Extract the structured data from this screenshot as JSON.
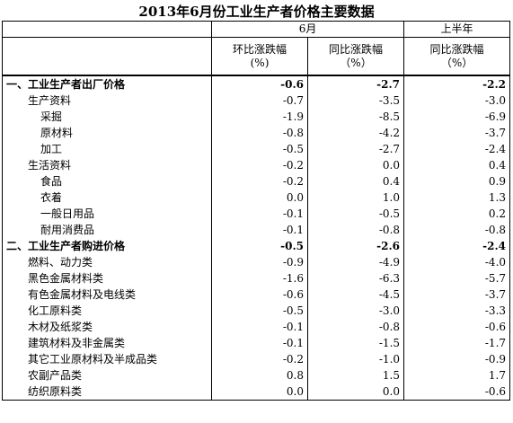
{
  "title": "2013年6月份工业生产者价格主要数据",
  "header": {
    "month": "6月",
    "half": "上半年",
    "cols": [
      [
        "环比涨跌幅",
        "(%)"
      ],
      [
        "同比涨跌幅",
        "（%）"
      ],
      [
        "同比涨跌幅",
        "（%）"
      ]
    ]
  },
  "table": {
    "rows": [
      [
        "一、工业生产者出厂价格",
        "-0.6",
        "-2.7",
        "-2.2"
      ],
      [
        "生产资料",
        "-0.7",
        "-3.5",
        "-3.0"
      ],
      [
        "采掘",
        "-1.9",
        "-8.5",
        "-6.9"
      ],
      [
        "原材料",
        "-0.8",
        "-4.2",
        "-3.7"
      ],
      [
        "加工",
        "-0.5",
        "-2.7",
        "-2.4"
      ],
      [
        "生活资料",
        "-0.2",
        "0.0",
        "0.4"
      ],
      [
        "食品",
        "-0.2",
        "0.4",
        "0.9"
      ],
      [
        "衣着",
        "0.0",
        "1.0",
        "1.3"
      ],
      [
        "一般日用品",
        "-0.1",
        "-0.5",
        "0.2"
      ],
      [
        "耐用消费品",
        "-0.1",
        "-0.8",
        "-0.8"
      ],
      [
        "二、工业生产者购进价格",
        "-0.5",
        "-2.6",
        "-2.4"
      ],
      [
        "燃料、动力类",
        "-0.9",
        "-4.9",
        "-4.0"
      ],
      [
        "黑色金属材料类",
        "-1.6",
        "-6.3",
        "-5.7"
      ],
      [
        "有色金属材料及电线类",
        "-0.6",
        "-4.5",
        "-3.7"
      ],
      [
        "化工原料类",
        "-0.5",
        "-3.0",
        "-3.3"
      ],
      [
        "木材及纸浆类",
        "-0.1",
        "-0.8",
        "-0.6"
      ],
      [
        "建筑材料及非金属类",
        "-0.1",
        "-1.5",
        "-1.7"
      ],
      [
        "其它工业原材料及半成品类",
        "-0.2",
        "-1.0",
        "-0.9"
      ],
      [
        "农副产品类",
        "0.8",
        "1.5",
        "1.7"
      ],
      [
        "纺织原料类",
        "0.0",
        "0.0",
        "-0.6"
      ]
    ]
  }
}
